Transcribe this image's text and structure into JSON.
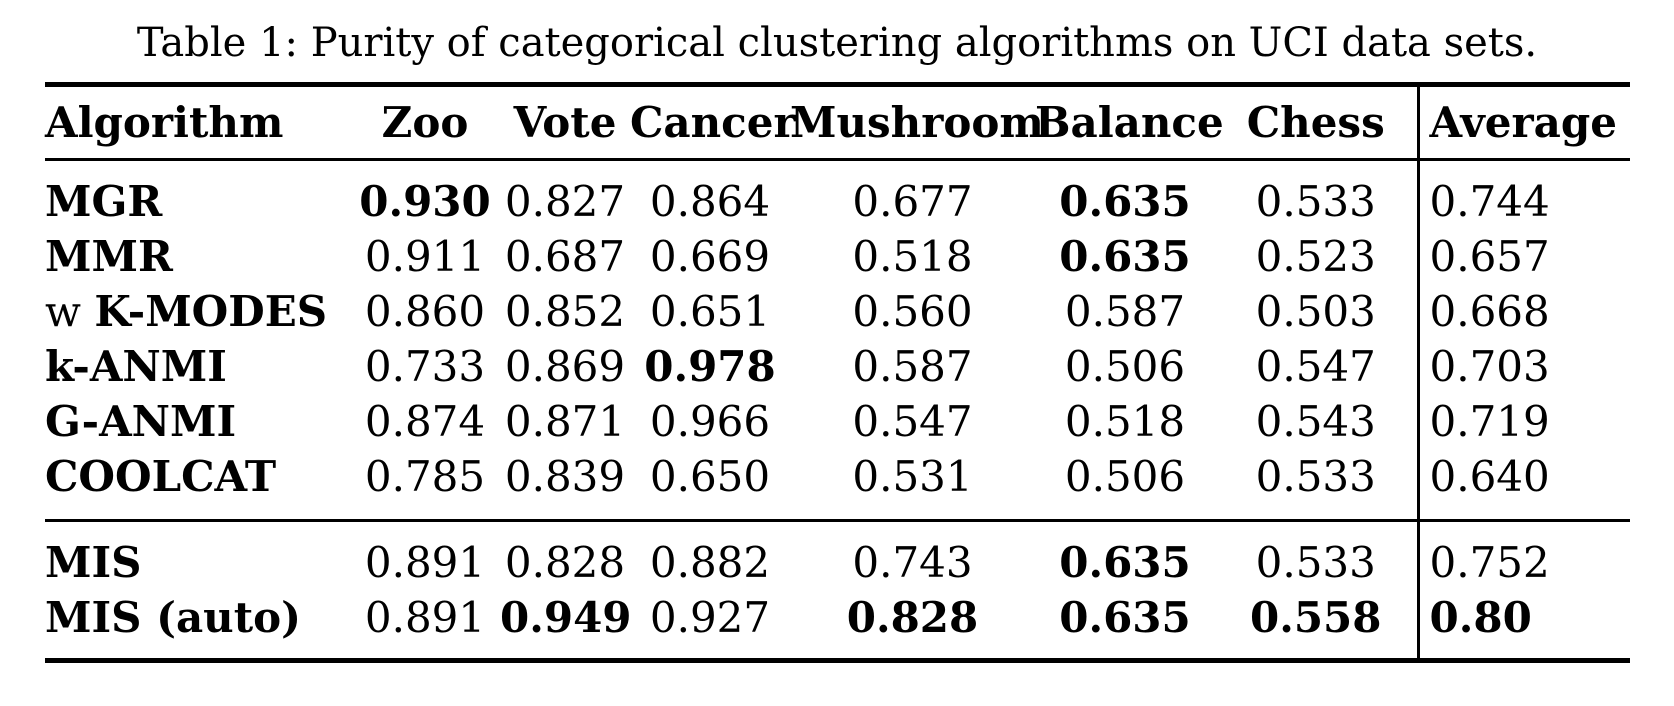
{
  "caption": "Table 1: Purity of categorical clustering algorithms on UCI data sets.",
  "table": {
    "headers": [
      "Algorithm",
      "Zoo",
      "Vote",
      "Cancer",
      "Mushroom",
      "Balance",
      "Chess",
      "Average"
    ],
    "sections": [
      {
        "rows": [
          {
            "label": {
              "prefix": "",
              "name": "MGR"
            },
            "cells": [
              {
                "v": "0.930",
                "b": true
              },
              {
                "v": "0.827",
                "b": false
              },
              {
                "v": "0.864",
                "b": false
              },
              {
                "v": "0.677",
                "b": false
              },
              {
                "v": "0.635",
                "b": true
              },
              {
                "v": "0.533",
                "b": false
              },
              {
                "v": "0.744",
                "b": false
              }
            ]
          },
          {
            "label": {
              "prefix": "",
              "name": "MMR"
            },
            "cells": [
              {
                "v": "0.911",
                "b": false
              },
              {
                "v": "0.687",
                "b": false
              },
              {
                "v": "0.669",
                "b": false
              },
              {
                "v": "0.518",
                "b": false
              },
              {
                "v": "0.635",
                "b": true
              },
              {
                "v": "0.523",
                "b": false
              },
              {
                "v": "0.657",
                "b": false
              }
            ]
          },
          {
            "label": {
              "prefix": "w ",
              "name": "K-MODES"
            },
            "cells": [
              {
                "v": "0.860",
                "b": false
              },
              {
                "v": "0.852",
                "b": false
              },
              {
                "v": "0.651",
                "b": false
              },
              {
                "v": "0.560",
                "b": false
              },
              {
                "v": "0.587",
                "b": false
              },
              {
                "v": "0.503",
                "b": false
              },
              {
                "v": "0.668",
                "b": false
              }
            ]
          },
          {
            "label": {
              "prefix": "",
              "name": "k-ANMI"
            },
            "cells": [
              {
                "v": "0.733",
                "b": false
              },
              {
                "v": "0.869",
                "b": false
              },
              {
                "v": "0.978",
                "b": true
              },
              {
                "v": "0.587",
                "b": false
              },
              {
                "v": "0.506",
                "b": false
              },
              {
                "v": "0.547",
                "b": false
              },
              {
                "v": "0.703",
                "b": false
              }
            ]
          },
          {
            "label": {
              "prefix": "",
              "name": "G-ANMI"
            },
            "cells": [
              {
                "v": "0.874",
                "b": false
              },
              {
                "v": "0.871",
                "b": false
              },
              {
                "v": "0.966",
                "b": false
              },
              {
                "v": "0.547",
                "b": false
              },
              {
                "v": "0.518",
                "b": false
              },
              {
                "v": "0.543",
                "b": false
              },
              {
                "v": "0.719",
                "b": false
              }
            ]
          },
          {
            "label": {
              "prefix": "",
              "name": "COOLCAT"
            },
            "cells": [
              {
                "v": "0.785",
                "b": false
              },
              {
                "v": "0.839",
                "b": false
              },
              {
                "v": "0.650",
                "b": false
              },
              {
                "v": "0.531",
                "b": false
              },
              {
                "v": "0.506",
                "b": false
              },
              {
                "v": "0.533",
                "b": false
              },
              {
                "v": "0.640",
                "b": false
              }
            ]
          }
        ]
      },
      {
        "rows": [
          {
            "label": {
              "prefix": "",
              "name": "MIS"
            },
            "cells": [
              {
                "v": "0.891",
                "b": false
              },
              {
                "v": "0.828",
                "b": false
              },
              {
                "v": "0.882",
                "b": false
              },
              {
                "v": "0.743",
                "b": false
              },
              {
                "v": "0.635",
                "b": true
              },
              {
                "v": "0.533",
                "b": false
              },
              {
                "v": "0.752",
                "b": false
              }
            ]
          },
          {
            "label": {
              "prefix": "",
              "name": "MIS (auto)"
            },
            "cells": [
              {
                "v": "0.891",
                "b": false
              },
              {
                "v": "0.949",
                "b": true
              },
              {
                "v": "0.927",
                "b": false
              },
              {
                "v": "0.828",
                "b": true
              },
              {
                "v": "0.635",
                "b": true
              },
              {
                "v": "0.558",
                "b": true
              },
              {
                "v": "0.80",
                "b": true
              }
            ]
          }
        ]
      }
    ]
  }
}
